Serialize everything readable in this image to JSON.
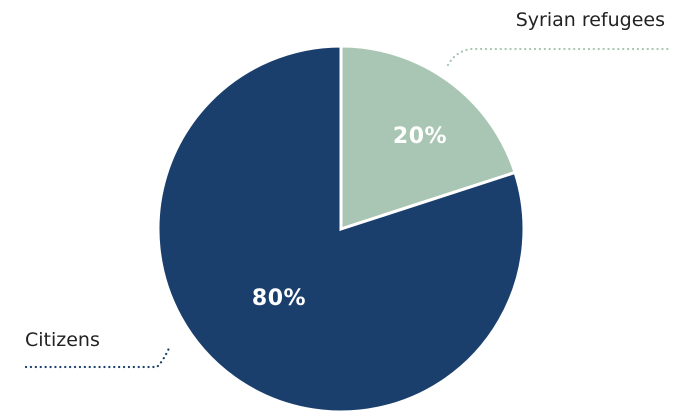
{
  "chart_data": {
    "type": "pie",
    "title": "",
    "slices": [
      {
        "label": "Syrian refugees",
        "value": 20,
        "value_label": "20%",
        "color": "#a9c5b3",
        "leader_color": "#a9c5b3"
      },
      {
        "label": "Citizens",
        "value": 80,
        "value_label": "80%",
        "color": "#1b3f6d",
        "leader_color": "#1b3f6d"
      }
    ],
    "start_angle": "12 o'clock",
    "direction": "clockwise",
    "legend": "none (callout labels)",
    "slice_border_color": "#ffffff"
  }
}
